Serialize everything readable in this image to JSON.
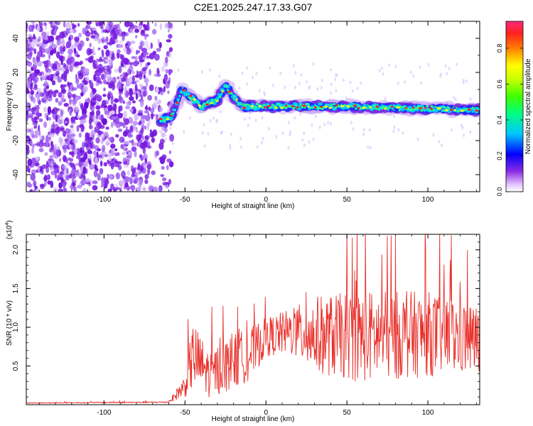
{
  "title": "C2E1.2025.247.17.33.G07",
  "chart_data": [
    {
      "type": "heatmap",
      "xlabel": "Height of straight line (km)",
      "ylabel": "Frequency (Hz)",
      "xlim": [
        -148,
        132
      ],
      "ylim": [
        -50,
        50
      ],
      "xticks": [
        -100,
        -50,
        0,
        50,
        100
      ],
      "yticks": [
        40,
        20,
        0,
        -20,
        -40
      ],
      "noise_region": {
        "x_range": [
          -148,
          -58
        ],
        "freq_range": [
          -50,
          50
        ]
      },
      "signal_track": [
        {
          "x": -65,
          "f": -8
        },
        {
          "x": -58,
          "f": -6
        },
        {
          "x": -52,
          "f": 10
        },
        {
          "x": -47,
          "f": 6
        },
        {
          "x": -40,
          "f": 0
        },
        {
          "x": -30,
          "f": 4
        },
        {
          "x": -25,
          "f": 12
        },
        {
          "x": -15,
          "f": 0
        },
        {
          "x": 0,
          "f": 0
        },
        {
          "x": 50,
          "f": 0
        },
        {
          "x": 130,
          "f": -2
        }
      ],
      "colorbar": {
        "label": "Normalized spectral amplitude",
        "range": [
          0,
          0.95
        ],
        "ticks": [
          "0.0",
          "0.2",
          "0.4",
          "0.6",
          "0.8"
        ],
        "tick_values": [
          0,
          0.2,
          0.4,
          0.6,
          0.8
        ]
      }
    },
    {
      "type": "line",
      "xlabel": "Height of straight line (km)",
      "ylabel": "SNR (10 * v/v)",
      "multiplier_base": "(x10",
      "multiplier_exp": "4",
      "multiplier_close": ")",
      "xlim": [
        -148,
        132
      ],
      "ylim": [
        0,
        2.2
      ],
      "xticks": [
        -100,
        -50,
        0,
        50,
        100
      ],
      "yticks": [
        0.5,
        1.0,
        1.5,
        2.0
      ],
      "ytick_labels": [
        "0.5",
        "1.0",
        "1.5",
        "2.0"
      ],
      "envelope": [
        {
          "x": -148,
          "base": 0.02,
          "spread": 0.01
        },
        {
          "x": -60,
          "base": 0.03,
          "spread": 0.02
        },
        {
          "x": -50,
          "base": 0.2,
          "spread": 0.3
        },
        {
          "x": -45,
          "base": 0.5,
          "spread": 0.9
        },
        {
          "x": -35,
          "base": 0.3,
          "spread": 0.6
        },
        {
          "x": -25,
          "base": 0.4,
          "spread": 0.7
        },
        {
          "x": -10,
          "base": 0.55,
          "spread": 0.7
        },
        {
          "x": 0,
          "base": 0.8,
          "spread": 0.5
        },
        {
          "x": 15,
          "base": 0.85,
          "spread": 0.6
        },
        {
          "x": 30,
          "base": 0.75,
          "spread": 1.0
        },
        {
          "x": 60,
          "base": 0.7,
          "spread": 1.2
        },
        {
          "x": 100,
          "base": 0.75,
          "spread": 1.1
        },
        {
          "x": 132,
          "base": 0.7,
          "spread": 0.9
        }
      ],
      "color": "#e8302a"
    }
  ]
}
